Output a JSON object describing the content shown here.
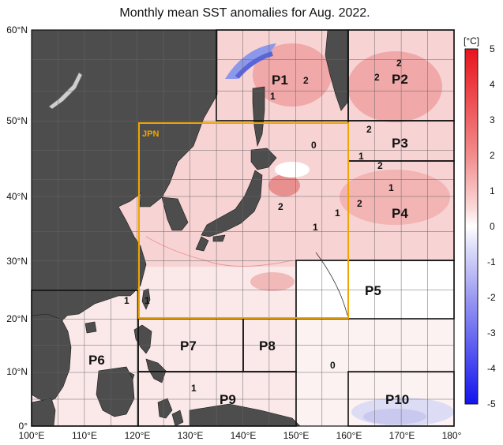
{
  "title": "Monthly mean SST anomalies for Aug. 2022.",
  "x_ticks": [
    "100°E",
    "110°E",
    "120°E",
    "130°E",
    "140°E",
    "150°E",
    "160°E",
    "170°E",
    "180°"
  ],
  "y_ticks": [
    "60°N",
    "50°N",
    "40°N",
    "30°N",
    "20°N",
    "10°N",
    "0°"
  ],
  "regions": [
    "P1",
    "P2",
    "P3",
    "P4",
    "P5",
    "P6",
    "P7",
    "P8",
    "P9",
    "P10"
  ],
  "jpn_label": "JPN",
  "contour_labels": [
    "2",
    "1",
    "2",
    "2",
    "2",
    "2",
    "0",
    "1",
    "2",
    "1",
    "1",
    "2",
    "1",
    "1",
    "0",
    "1",
    "1"
  ],
  "colorbar": {
    "unit": "[°C]",
    "ticks": [
      "5",
      "4",
      "3",
      "2",
      "1",
      "0",
      "-1",
      "-2",
      "-3",
      "-4",
      "-5"
    ]
  },
  "colors": {
    "land": "#4a4a4a",
    "jpn_box": "#f0a500",
    "warm": "#e8302e",
    "cool": "#3a3aff"
  }
}
